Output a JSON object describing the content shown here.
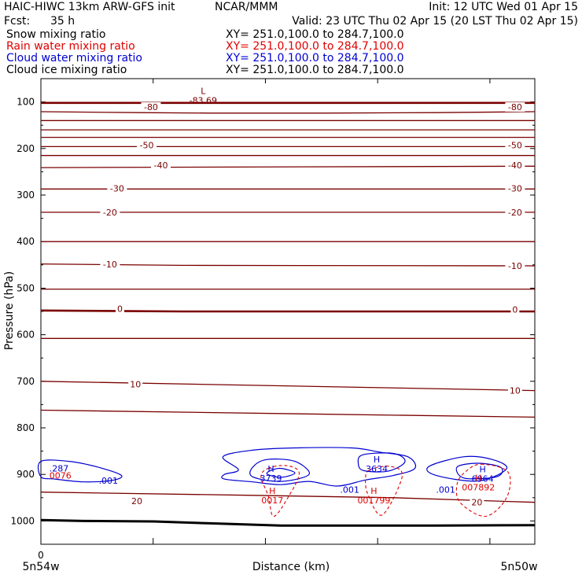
{
  "header": {
    "model": "HAIC-HIWC 13km ARW-GFS init",
    "org": "NCAR/MMM",
    "init": "Init: 12 UTC Wed 01 Apr 15",
    "fcst_label": "Fcst:",
    "fcst_value": "35 h",
    "valid": "Valid: 23 UTC Thu 02 Apr 15 (20 LST Thu 02 Apr 15)"
  },
  "legend": [
    {
      "name": "Snow mixing ratio",
      "xy": "XY=  251.0,100.0 to 284.7,100.0",
      "color": "#000000"
    },
    {
      "name": "Rain water mixing ratio",
      "xy": "XY=  251.0,100.0 to 284.7,100.0",
      "color": "#e00000"
    },
    {
      "name": "Cloud water mixing ratio",
      "xy": "XY=  251.0,100.0 to 284.7,100.0",
      "color": "#0000d0"
    },
    {
      "name": "Cloud ice mixing ratio",
      "xy": "XY=  251.0,100.0 to 284.7,100.0",
      "color": "#000000"
    }
  ],
  "colors": {
    "temperature": "#7a0000",
    "cloud_water": "#0000d0",
    "rain_water": "#e00000",
    "terrain": "#000000"
  },
  "chart_data": {
    "type": "line",
    "title": "",
    "xlabel": "Distance (km)",
    "ylabel": "Pressure (hPa)",
    "ylim": [
      1050,
      50
    ],
    "xlim": [
      0,
      35
    ],
    "x_tick_label": "0",
    "x_end_labels": [
      "5n54w",
      "5n50w"
    ],
    "y_ticks": [
      100,
      200,
      300,
      400,
      500,
      600,
      700,
      800,
      900,
      1000
    ],
    "grid": false,
    "temperature_labels": [
      {
        "text": "-80",
        "x": 7.8,
        "p": 111
      },
      {
        "text": "-80",
        "x": 33.6,
        "p": 111
      },
      {
        "text": "-50",
        "x": 7.5,
        "p": 193
      },
      {
        "text": "-50",
        "x": 33.6,
        "p": 193
      },
      {
        "text": "-40",
        "x": 8.5,
        "p": 236
      },
      {
        "text": "-40",
        "x": 33.6,
        "p": 236
      },
      {
        "text": "-30",
        "x": 5.4,
        "p": 286
      },
      {
        "text": "-30",
        "x": 33.6,
        "p": 286
      },
      {
        "text": "-20",
        "x": 4.9,
        "p": 337
      },
      {
        "text": "-20",
        "x": 33.6,
        "p": 337
      },
      {
        "text": "-10",
        "x": 4.9,
        "p": 449
      },
      {
        "text": "-10",
        "x": 33.6,
        "p": 452
      },
      {
        "text": "0",
        "x": 5.6,
        "p": 544
      },
      {
        "text": "0",
        "x": 33.6,
        "p": 546
      },
      {
        "text": "10",
        "x": 6.7,
        "p": 706
      },
      {
        "text": "10",
        "x": 33.6,
        "p": 720
      },
      {
        "text": "20",
        "x": 6.8,
        "p": 957
      },
      {
        "text": "20",
        "x": 30.9,
        "p": 960
      }
    ],
    "extrema": [
      {
        "kind": "L",
        "value": "-83.69",
        "x": 11.5,
        "p": 86,
        "series": "temperature"
      },
      {
        "kind": "H",
        "value": "3739",
        "x": 16.3,
        "p": 898,
        "series": "cloud_water"
      },
      {
        "kind": "H",
        "value": "3634",
        "x": 23.8,
        "p": 878,
        "series": "cloud_water"
      },
      {
        "kind": "H",
        "value": "6964",
        "x": 31.3,
        "p": 899,
        "series": "cloud_water"
      },
      {
        "kind": "H",
        "value": "0017",
        "x": 16.4,
        "p": 945,
        "series": "rain_water"
      },
      {
        "kind": "H",
        "value": "001799",
        "x": 23.6,
        "p": 945,
        "series": "rain_water"
      },
      {
        "kind": "H",
        "value": "007892",
        "x": 31.0,
        "p": 917,
        "series": "rain_water"
      }
    ],
    "series_labels": [
      {
        "text": ".287",
        "x": 0.6,
        "p": 887,
        "series": "cloud_water"
      },
      {
        "text": ".001",
        "x": 4.1,
        "p": 913,
        "series": "cloud_water"
      },
      {
        "text": ".001",
        "x": 21.2,
        "p": 933,
        "series": "cloud_water"
      },
      {
        "text": ".001",
        "x": 28.0,
        "p": 933,
        "series": "cloud_water"
      },
      {
        "text": "0076",
        "x": 0.6,
        "p": 902,
        "series": "rain_water"
      }
    ],
    "temperature_isolines": [
      {
        "v": -80,
        "p": [
          [
            0,
            121
          ],
          [
            7,
            123
          ],
          [
            12,
            124
          ],
          [
            20,
            124
          ],
          [
            28,
            123
          ],
          [
            35,
            121
          ]
        ]
      },
      {
        "v": -70,
        "p": [
          [
            0,
            140
          ],
          [
            35,
            140
          ]
        ]
      },
      {
        "v": -60,
        "p": [
          [
            0,
            160
          ],
          [
            35,
            160
          ]
        ]
      },
      {
        "v": -55,
        "p": [
          [
            0,
            176
          ],
          [
            35,
            176
          ]
        ]
      },
      {
        "v": -50,
        "p": [
          [
            0,
            196
          ],
          [
            35,
            196
          ]
        ]
      },
      {
        "v": -45,
        "p": [
          [
            0,
            215
          ],
          [
            35,
            215
          ]
        ]
      },
      {
        "v": -40,
        "p": [
          [
            0,
            241
          ],
          [
            35,
            238
          ]
        ]
      },
      {
        "v": -30,
        "p": [
          [
            0,
            287
          ],
          [
            35,
            287
          ]
        ]
      },
      {
        "v": -20,
        "p": [
          [
            0,
            337
          ],
          [
            35,
            337
          ]
        ]
      },
      {
        "v": -15,
        "p": [
          [
            0,
            400
          ],
          [
            35,
            400
          ]
        ]
      },
      {
        "v": -10,
        "p": [
          [
            0,
            448
          ],
          [
            10,
            451
          ],
          [
            35,
            452
          ]
        ]
      },
      {
        "v": -5,
        "p": [
          [
            0,
            502
          ],
          [
            35,
            502
          ]
        ]
      },
      {
        "v": 0,
        "p": [
          [
            0,
            548
          ],
          [
            10,
            550
          ],
          [
            35,
            550
          ]
        ]
      },
      {
        "v": 5,
        "p": [
          [
            0,
            608
          ],
          [
            35,
            608
          ]
        ]
      },
      {
        "v": 10,
        "p": [
          [
            0,
            700
          ],
          [
            35,
            720
          ]
        ]
      },
      {
        "v": 15,
        "p": [
          [
            0,
            762
          ],
          [
            35,
            777
          ]
        ]
      },
      {
        "v": 20,
        "p": [
          [
            0,
            938
          ],
          [
            15,
            945
          ],
          [
            25,
            950
          ],
          [
            35,
            960
          ]
        ]
      }
    ],
    "heavy_isolines": [
      {
        "p": [
          [
            0,
            102
          ],
          [
            35,
            102
          ]
        ]
      },
      {
        "p": [
          [
            0,
            548
          ],
          [
            10,
            550
          ],
          [
            35,
            550
          ]
        ]
      }
    ],
    "terrain": [
      [
        0,
        998
      ],
      [
        3,
        1000
      ],
      [
        8,
        1001
      ],
      [
        12,
        1005
      ],
      [
        17,
        1010
      ],
      [
        23,
        1010
      ],
      [
        28,
        1010
      ],
      [
        35,
        1009
      ]
    ],
    "cloud_water_contours": [
      [
        [
          0,
          872
        ],
        [
          2,
          872
        ],
        [
          4,
          884
        ],
        [
          5.7,
          902
        ],
        [
          5,
          913
        ],
        [
          3,
          916
        ],
        [
          1,
          910
        ],
        [
          0,
          905
        ]
      ],
      [
        [
          12.9,
          862
        ],
        [
          15,
          848
        ],
        [
          18,
          843
        ],
        [
          22,
          843
        ],
        [
          24,
          852
        ],
        [
          26,
          862
        ],
        [
          26.5,
          887
        ],
        [
          25,
          902
        ],
        [
          23,
          912
        ],
        [
          21,
          925
        ],
        [
          19,
          915
        ],
        [
          17,
          922
        ],
        [
          15,
          916
        ],
        [
          13,
          910
        ],
        [
          13,
          900
        ],
        [
          14,
          890
        ]
      ],
      [
        [
          16,
          868
        ],
        [
          18,
          872
        ],
        [
          19,
          900
        ],
        [
          17,
          915
        ],
        [
          15,
          905
        ],
        [
          15,
          885
        ]
      ],
      [
        [
          16.9,
          887
        ],
        [
          16,
          898
        ],
        [
          17,
          906
        ],
        [
          18,
          897
        ]
      ],
      [
        [
          22.8,
          858
        ],
        [
          25,
          855
        ],
        [
          25.8,
          873
        ],
        [
          24.6,
          893
        ],
        [
          22.9,
          892
        ],
        [
          22.5,
          878
        ]
      ],
      [
        [
          27.5,
          883
        ],
        [
          30,
          862
        ],
        [
          32,
          868
        ],
        [
          33,
          888
        ],
        [
          31,
          914
        ],
        [
          28,
          902
        ]
      ],
      [
        [
          29.5,
          884
        ],
        [
          31,
          876
        ],
        [
          32.6,
          885
        ],
        [
          32.3,
          905
        ],
        [
          30,
          908
        ]
      ]
    ],
    "rain_water_contours": [
      [
        [
          16.1,
          887
        ],
        [
          17.4,
          881
        ],
        [
          18.3,
          897
        ],
        [
          17.6,
          945
        ],
        [
          16.5,
          990
        ],
        [
          16.1,
          945
        ],
        [
          15.6,
          905
        ]
      ],
      [
        [
          23.3,
          890
        ],
        [
          24.8,
          883
        ],
        [
          25.6,
          905
        ],
        [
          24.2,
          987
        ],
        [
          23.2,
          945
        ],
        [
          23,
          910
        ]
      ],
      [
        [
          31.2,
          878
        ],
        [
          33.1,
          895
        ],
        [
          33,
          950
        ],
        [
          31.5,
          990
        ],
        [
          29.7,
          960
        ],
        [
          29.5,
          920
        ],
        [
          30.1,
          894
        ]
      ]
    ]
  }
}
